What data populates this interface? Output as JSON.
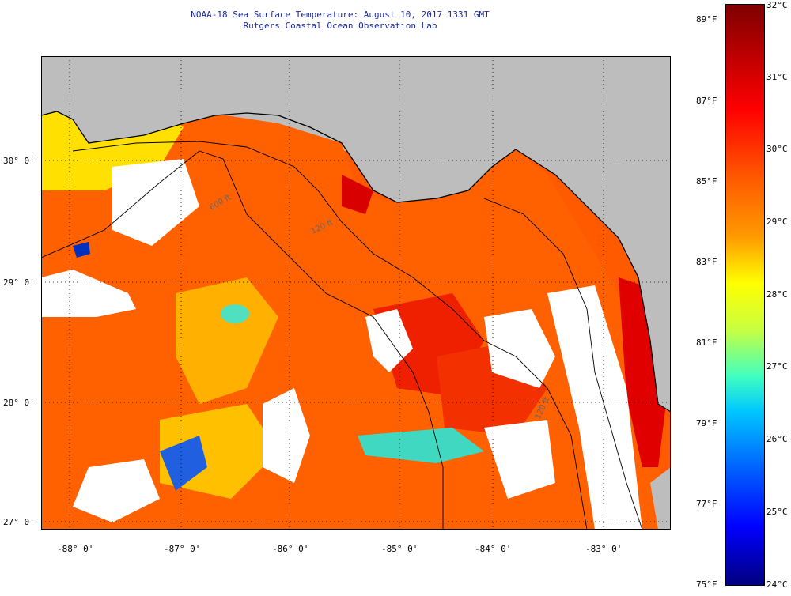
{
  "header": {
    "title": "NOAA-18 Sea Surface Temperature:  August 10, 2017 1331 GMT",
    "subtitle": "Rutgers Coastal Ocean Observation Lab"
  },
  "map": {
    "latitude_labels": [
      "30° 0'",
      "29° 0'",
      "28° 0'",
      "27° 0'"
    ],
    "longitude_labels": [
      "-88° 0'",
      "-87° 0'",
      "-86° 0'",
      "-85° 0'",
      "-84° 0'",
      "-83° 0'"
    ],
    "isobath_labels": [
      "600 ft",
      "120 ft",
      "120 ft"
    ],
    "colors": {
      "land": "#bdbdbd",
      "no_data": "#ffffff",
      "warm": "#ff5a00",
      "hot": "#e60000",
      "mild": "#ff9a00",
      "cool": "#ffff00",
      "cold": "#30d0e0",
      "coldest": "#0030c0"
    }
  },
  "colorbar": {
    "fahrenheit_labels": [
      "89°F",
      "87°F",
      "85°F",
      "83°F",
      "81°F",
      "79°F",
      "77°F",
      "75°F"
    ],
    "celsius_labels": [
      "32°C",
      "31°C",
      "30°C",
      "29°C",
      "28°C",
      "27°C",
      "26°C",
      "25°C",
      "24°C"
    ]
  }
}
